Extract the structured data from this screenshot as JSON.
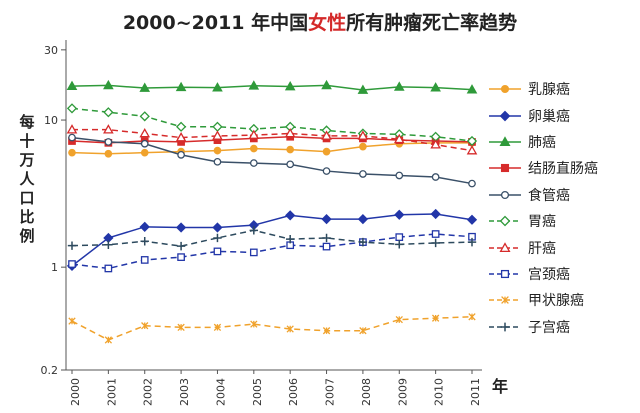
{
  "title": {
    "prefix": "2000~2011 年中国",
    "highlight": "女性",
    "suffix": "所有肿瘤死亡率趋势",
    "highlight_color": "#d42a2a"
  },
  "chart_data": {
    "type": "line",
    "title": "2000~2011 年中国女性所有肿瘤死亡率趋势",
    "xlabel": "年",
    "ylabel": "每十万人口比例",
    "y_scale": "log",
    "ylim": [
      0.2,
      35
    ],
    "y_ticks": [
      0.2,
      1,
      10,
      30
    ],
    "y_tick_labels": [
      "0.2",
      "1",
      "10",
      "30"
    ],
    "categories": [
      "2000",
      "2001",
      "2002",
      "2003",
      "2004",
      "2005",
      "2006",
      "2007",
      "2008",
      "2009",
      "2010",
      "2011"
    ],
    "legend_position": "right",
    "grid": false,
    "series": [
      {
        "name": "乳腺癌",
        "color": "#f0a22c",
        "dash": "solid",
        "marker": "circle",
        "filled": true,
        "values": [
          6.0,
          5.9,
          6.0,
          6.1,
          6.2,
          6.4,
          6.3,
          6.1,
          6.6,
          6.9,
          7.0,
          7.0
        ]
      },
      {
        "name": "卵巢癌",
        "color": "#2236a8",
        "dash": "solid",
        "marker": "diamond",
        "filled": true,
        "values": [
          1.02,
          1.58,
          1.88,
          1.86,
          1.86,
          1.93,
          2.25,
          2.12,
          2.12,
          2.27,
          2.3,
          2.1
        ]
      },
      {
        "name": "肺癌",
        "color": "#2f9a3a",
        "dash": "solid",
        "marker": "triangle",
        "filled": true,
        "values": [
          17.0,
          17.2,
          16.5,
          16.7,
          16.6,
          17.1,
          16.9,
          17.2,
          16.0,
          16.8,
          16.6,
          16.1
        ]
      },
      {
        "name": "结肠直肠癌",
        "color": "#d62b2b",
        "dash": "solid",
        "marker": "square",
        "filled": true,
        "values": [
          7.2,
          7.0,
          7.2,
          7.1,
          7.3,
          7.5,
          7.7,
          7.5,
          7.5,
          7.3,
          7.2,
          7.1
        ]
      },
      {
        "name": "食管癌",
        "color": "#3a5068",
        "dash": "solid",
        "marker": "circle",
        "filled": false,
        "values": [
          7.6,
          7.1,
          6.9,
          5.8,
          5.2,
          5.1,
          5.0,
          4.5,
          4.3,
          4.2,
          4.1,
          3.7
        ]
      },
      {
        "name": "胃癌",
        "color": "#2f9a3a",
        "dash": "dash",
        "marker": "diamond",
        "filled": false,
        "values": [
          12.0,
          11.3,
          10.6,
          9.0,
          9.0,
          8.7,
          9.0,
          8.5,
          8.1,
          8.0,
          7.7,
          7.2
        ]
      },
      {
        "name": "肝癌",
        "color": "#d62b2b",
        "dash": "dash",
        "marker": "triangle",
        "filled": false,
        "values": [
          8.6,
          8.6,
          8.1,
          7.6,
          7.8,
          7.9,
          8.1,
          7.8,
          7.8,
          7.4,
          6.8,
          6.2
        ]
      },
      {
        "name": "宫颈癌",
        "color": "#2236a8",
        "dash": "dash",
        "marker": "square",
        "filled": false,
        "values": [
          1.05,
          0.98,
          1.12,
          1.17,
          1.28,
          1.26,
          1.41,
          1.38,
          1.48,
          1.6,
          1.68,
          1.61
        ]
      },
      {
        "name": "甲状腺癌",
        "color": "#f0a22c",
        "dash": "dash",
        "marker": "x",
        "filled": false,
        "values": [
          0.43,
          0.32,
          0.4,
          0.39,
          0.39,
          0.41,
          0.38,
          0.37,
          0.37,
          0.44,
          0.45,
          0.46
        ]
      },
      {
        "name": "子宫癌",
        "color": "#2d4a5e",
        "dash": "dash",
        "marker": "plus",
        "filled": false,
        "values": [
          1.4,
          1.42,
          1.5,
          1.39,
          1.58,
          1.78,
          1.55,
          1.58,
          1.48,
          1.43,
          1.46,
          1.48
        ]
      }
    ]
  }
}
